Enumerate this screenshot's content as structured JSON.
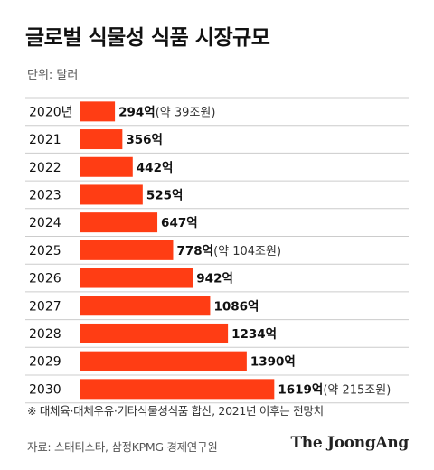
{
  "chart_data": {
    "type": "bar",
    "orientation": "horizontal",
    "title": "글로벌 식물성 식품 시장규모",
    "unit_label": "단위: 달러",
    "categories": [
      "2020년",
      "2021",
      "2022",
      "2023",
      "2024",
      "2025",
      "2026",
      "2027",
      "2028",
      "2029",
      "2030"
    ],
    "values": [
      294,
      356,
      442,
      525,
      647,
      778,
      942,
      1086,
      1234,
      1390,
      1619
    ],
    "value_labels": [
      "294억",
      "356억",
      "442억",
      "525억",
      "647억",
      "778억",
      "942억",
      "1086억",
      "1234억",
      "1390억",
      "1619억"
    ],
    "value_notes": [
      "(약 39조원)",
      "",
      "",
      "",
      "",
      "(약 104조원)",
      "",
      "",
      "",
      "",
      "(약 215조원)"
    ],
    "bar_color": "#ff3d14",
    "row_divider_color": "#cccccc",
    "grid": false,
    "legend": "none"
  },
  "footnote": "※ 대체육·대체우유·기타식물성식품 합산, 2021년 이후는 전망치",
  "source": "자료: 스태티스타, 삼정KPMG 경제연구원",
  "logo_text": "The JoongAng"
}
